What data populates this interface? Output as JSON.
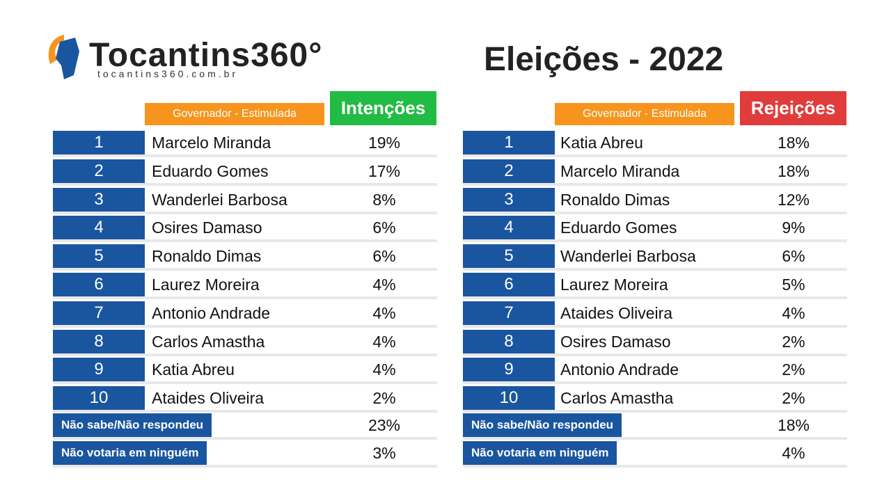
{
  "header": {
    "logo": "Tocantins360°",
    "site": "tocantins360.com.br",
    "title": "Eleições - 2022"
  },
  "tables": [
    {
      "subtitle": "Governador - Estimulada",
      "heading": "Intenções",
      "rows": [
        {
          "rank": "1",
          "name": "Marcelo Miranda",
          "value": "19%"
        },
        {
          "rank": "2",
          "name": "Eduardo Gomes",
          "value": "17%"
        },
        {
          "rank": "3",
          "name": "Wanderlei Barbosa",
          "value": "8%"
        },
        {
          "rank": "4",
          "name": "Osires Damaso",
          "value": "6%"
        },
        {
          "rank": "5",
          "name": "Ronaldo Dimas",
          "value": "6%"
        },
        {
          "rank": "6",
          "name": "Laurez Moreira",
          "value": "4%"
        },
        {
          "rank": "7",
          "name": "Antonio Andrade",
          "value": "4%"
        },
        {
          "rank": "8",
          "name": "Carlos Amastha",
          "value": "4%"
        },
        {
          "rank": "9",
          "name": "Katia Abreu",
          "value": "4%"
        },
        {
          "rank": "10",
          "name": "Ataides Oliveira",
          "value": "2%"
        }
      ],
      "extra": [
        {
          "label": "Não sabe/Não respondeu",
          "value": "23%"
        },
        {
          "label": "Não votaria em ninguém",
          "value": "3%"
        }
      ]
    },
    {
      "subtitle": "Governador - Estimulada",
      "heading": "Rejeições",
      "rows": [
        {
          "rank": "1",
          "name": "Katia Abreu",
          "value": "18%"
        },
        {
          "rank": "2",
          "name": "Marcelo Miranda",
          "value": "18%"
        },
        {
          "rank": "3",
          "name": "Ronaldo Dimas",
          "value": "12%"
        },
        {
          "rank": "4",
          "name": "Eduardo Gomes",
          "value": "9%"
        },
        {
          "rank": "5",
          "name": "Wanderlei Barbosa",
          "value": "6%"
        },
        {
          "rank": "6",
          "name": "Laurez Moreira",
          "value": "5%"
        },
        {
          "rank": "7",
          "name": "Ataides Oliveira",
          "value": "4%"
        },
        {
          "rank": "8",
          "name": "Osires Damaso",
          "value": "2%"
        },
        {
          "rank": "9",
          "name": "Antonio Andrade",
          "value": "2%"
        },
        {
          "rank": "10",
          "name": "Carlos Amastha",
          "value": "2%"
        }
      ],
      "extra": [
        {
          "label": "Não sabe/Não respondeu",
          "value": "18%"
        },
        {
          "label": "Não votaria em ninguém",
          "value": "4%"
        }
      ]
    }
  ]
}
